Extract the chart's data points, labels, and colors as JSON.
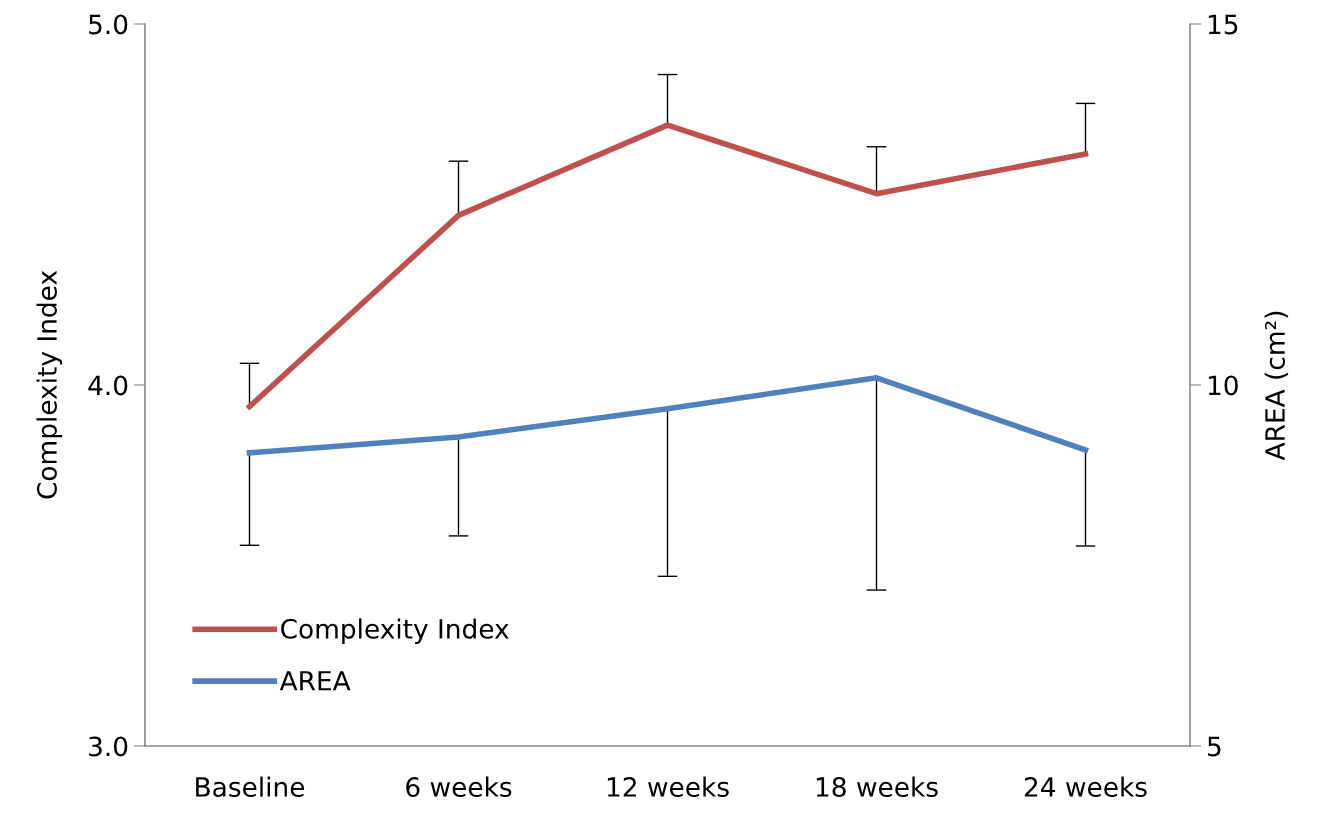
{
  "chart_data": {
    "type": "line",
    "ylabel": "Complexity Index",
    "y2label": "AREA (cm²)",
    "categories": [
      "Baseline",
      "6 weeks",
      "12 weeks",
      "18 weeks",
      "24 weeks"
    ],
    "series": [
      {
        "name": "Complexity Index",
        "color": "#c0504d",
        "values": [
          3.94,
          4.47,
          4.72,
          4.53,
          4.64
        ],
        "errors": [
          [
            3.94,
            4.06
          ],
          [
            4.47,
            4.62
          ],
          [
            4.72,
            4.86
          ],
          [
            4.53,
            4.66
          ],
          [
            4.64,
            4.78
          ]
        ]
      },
      {
        "name": "AREA",
        "color": "#4f81bd",
        "axis": "y2",
        "values": [
          9.06,
          9.28,
          9.67,
          10.1,
          9.1
        ],
        "errors": [
          [
            7.78,
            9.06
          ],
          [
            7.91,
            9.28
          ],
          [
            7.35,
            9.67
          ],
          [
            7.16,
            10.1
          ],
          [
            7.77,
            9.1
          ]
        ]
      }
    ],
    "ylim": [
      3.0,
      5.0
    ],
    "yticks": [
      {
        "value": 3.0,
        "label": "3.0"
      },
      {
        "value": 4.0,
        "label": "4.0"
      },
      {
        "value": 5.0,
        "label": "5.0"
      }
    ],
    "y2lim": [
      5,
      15
    ],
    "y2ticks": [
      5,
      10,
      15
    ],
    "grid": false,
    "legend": "bottom left",
    "marker": "none",
    "line_style": "solid"
  }
}
